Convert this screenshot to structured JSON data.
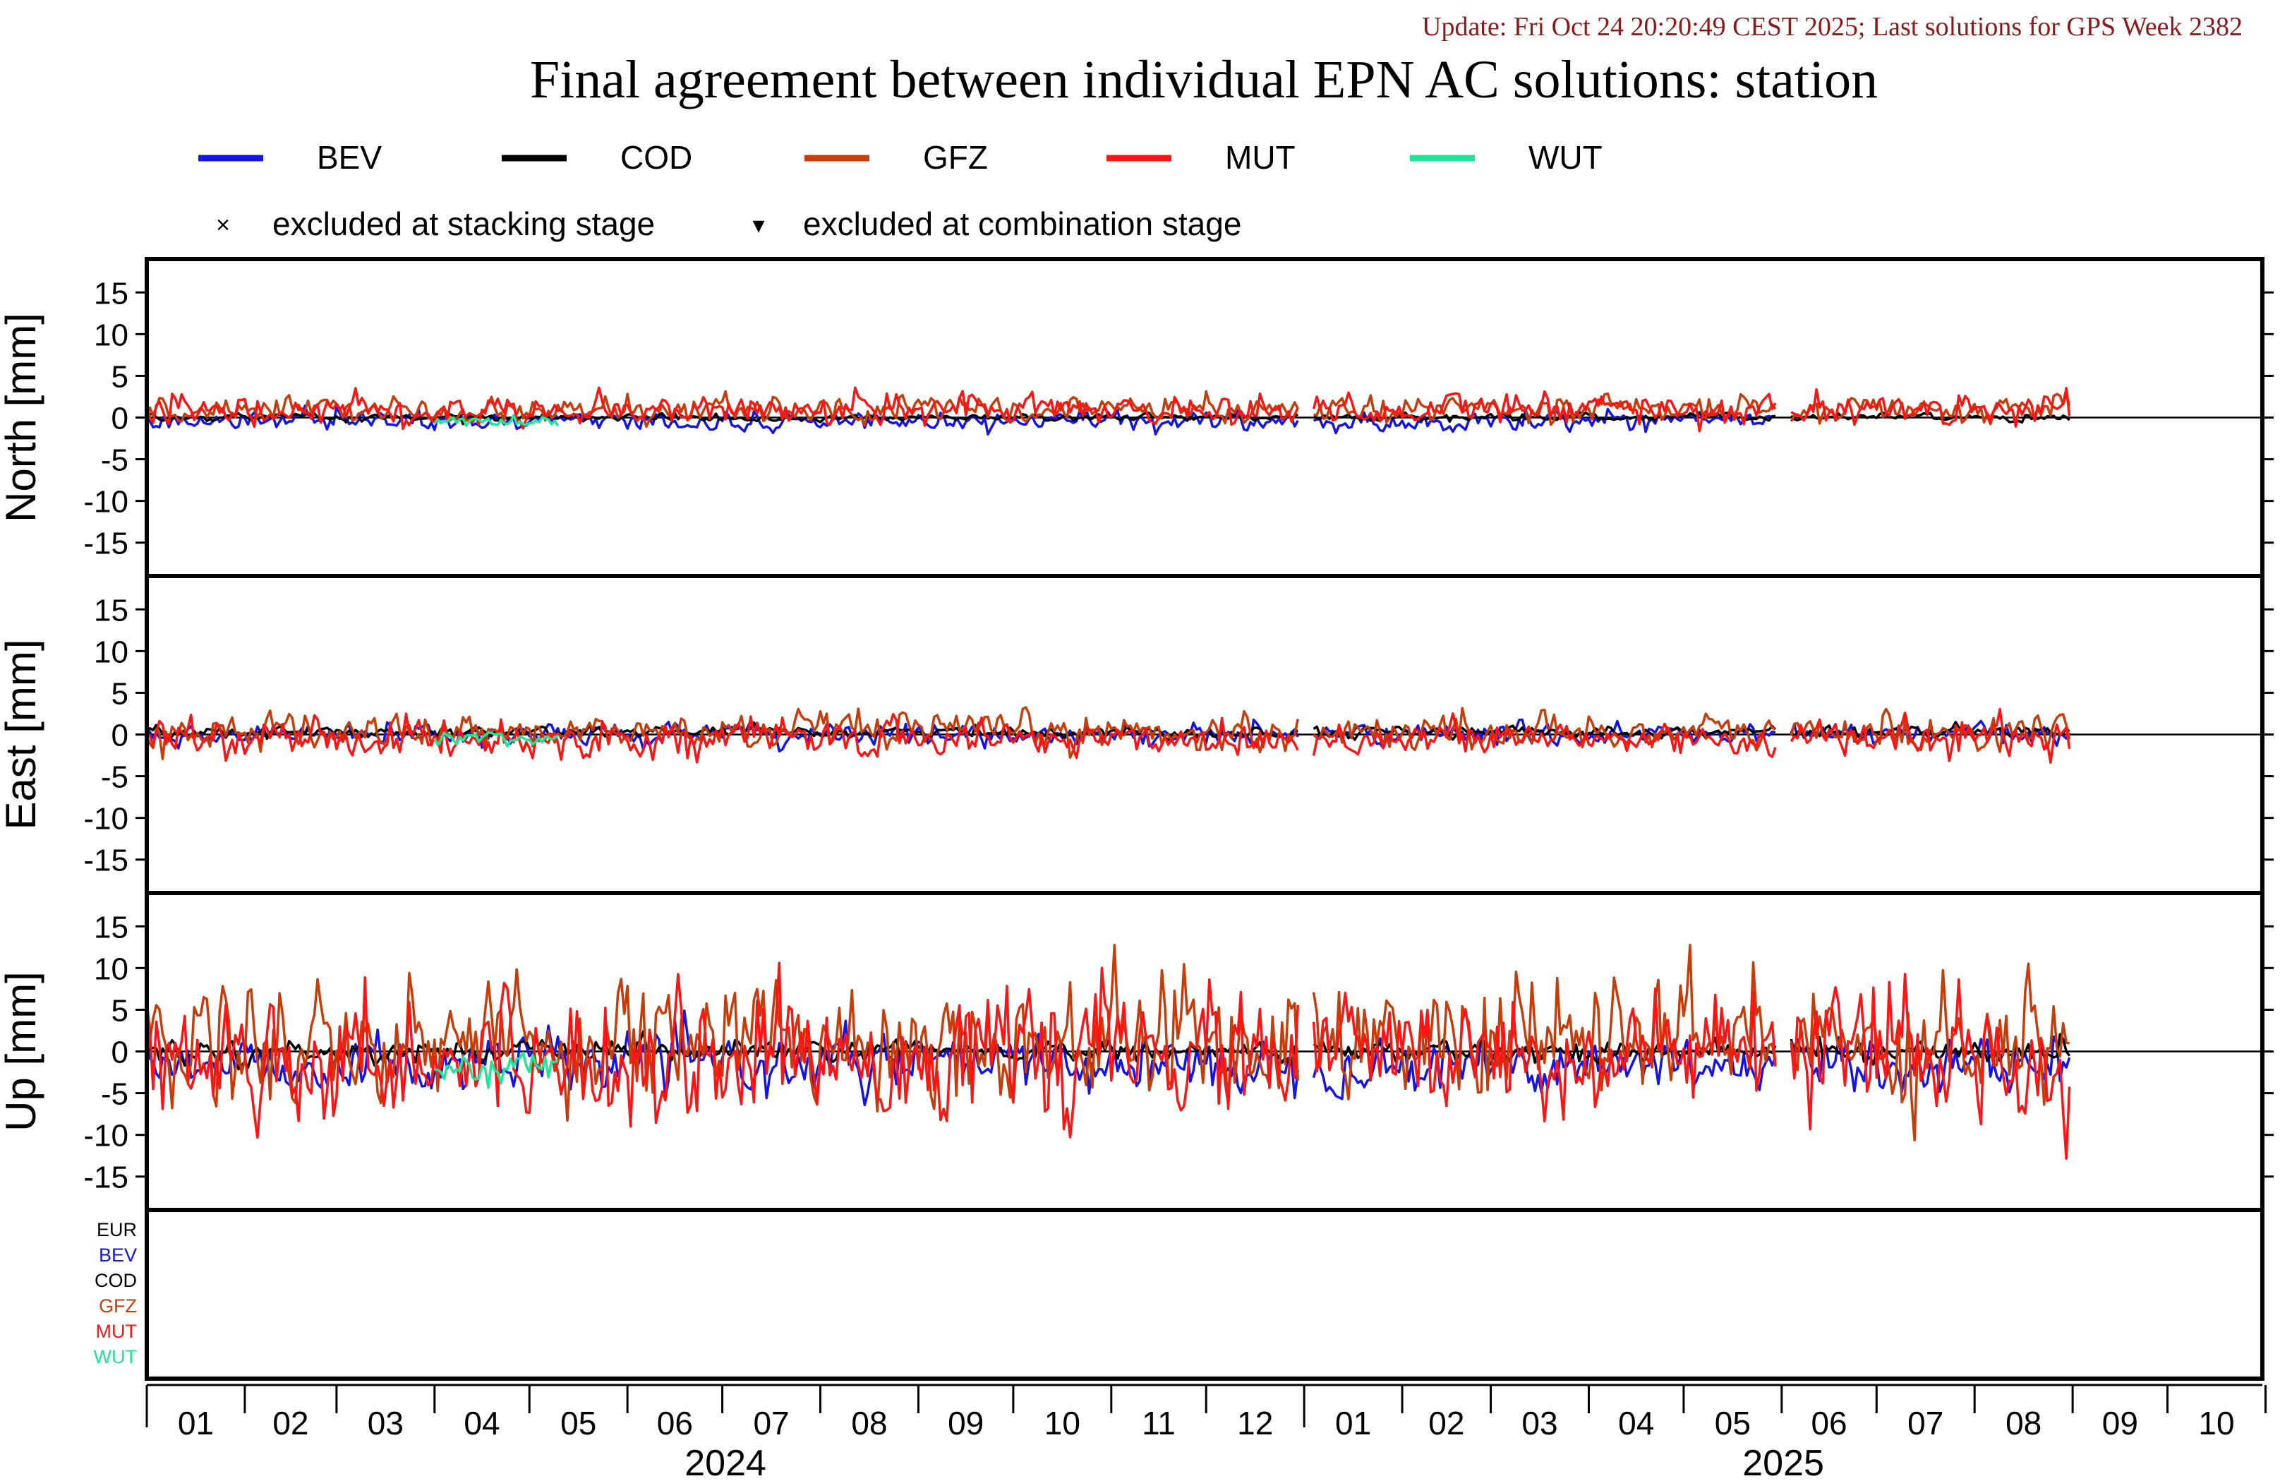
{
  "update_text": "Update: Fri Oct 24 20:20:49 CEST 2025; Last solutions for GPS Week 2382",
  "title": "Final agreement between individual EPN AC solutions: station",
  "legend": {
    "series": [
      {
        "name": "BEV",
        "color": "#1414e6"
      },
      {
        "name": "COD",
        "color": "#000000"
      },
      {
        "name": "GFZ",
        "color": "#c83c0a"
      },
      {
        "name": "MUT",
        "color": "#ff1414"
      },
      {
        "name": "WUT",
        "color": "#1ee696"
      }
    ],
    "markers": [
      {
        "symbol": "×",
        "label": "excluded at stacking stage"
      },
      {
        "symbol": "▾",
        "label": "excluded at combination stage"
      }
    ]
  },
  "chart_data": {
    "type": "line",
    "x_axis": {
      "month_ticks": [
        "01",
        "02",
        "03",
        "04",
        "05",
        "06",
        "07",
        "08",
        "09",
        "10",
        "11",
        "12",
        "01",
        "02",
        "03",
        "04",
        "05",
        "06",
        "07",
        "08",
        "09",
        "10"
      ],
      "years": [
        "2024",
        "2025"
      ],
      "range": [
        "2024-01-01",
        "2025-10-31"
      ]
    },
    "panels": [
      {
        "ylabel": "North [mm]",
        "ylim": [
          -19,
          19
        ],
        "yticks": [
          15,
          10,
          5,
          0,
          -5,
          -10,
          -15
        ],
        "series": [
          {
            "name": "BEV",
            "level": -0.4,
            "noise": 0.5,
            "start": "2024-01-01",
            "end": "2025-05-31"
          },
          {
            "name": "COD",
            "level": 0.0,
            "noise": 0.2,
            "start": "2024-01-01",
            "end": "2025-08-31"
          },
          {
            "name": "GFZ",
            "level": 1.0,
            "noise": 0.7,
            "start": "2024-01-01",
            "end": "2025-08-31"
          },
          {
            "name": "MUT",
            "level": 1.0,
            "noise": 0.9,
            "start": "2024-01-01",
            "end": "2025-08-31"
          },
          {
            "name": "WUT",
            "level": -0.5,
            "noise": 0.4,
            "start": "2024-04-01",
            "end": "2024-05-10"
          }
        ]
      },
      {
        "ylabel": "East [mm]",
        "ylim": [
          -19,
          19
        ],
        "yticks": [
          15,
          10,
          5,
          0,
          -5,
          -10,
          -15
        ],
        "series": [
          {
            "name": "BEV",
            "level": 0.0,
            "noise": 0.6,
            "start": "2024-01-01",
            "end": "2025-08-31"
          },
          {
            "name": "COD",
            "level": 0.3,
            "noise": 0.3,
            "start": "2024-01-01",
            "end": "2025-08-31"
          },
          {
            "name": "GFZ",
            "level": 0.3,
            "noise": 1.0,
            "start": "2024-01-01",
            "end": "2025-08-31"
          },
          {
            "name": "MUT",
            "level": -0.5,
            "noise": 1.0,
            "start": "2024-01-01",
            "end": "2025-08-31"
          },
          {
            "name": "WUT",
            "level": -0.4,
            "noise": 0.4,
            "start": "2024-04-01",
            "end": "2024-05-10"
          }
        ]
      },
      {
        "ylabel": "Up [mm]",
        "ylim": [
          -19,
          19
        ],
        "yticks": [
          15,
          10,
          5,
          0,
          -5,
          -10,
          -15
        ],
        "series": [
          {
            "name": "BEV",
            "level": -1.5,
            "noise": 1.5,
            "start": "2024-01-01",
            "end": "2025-08-31"
          },
          {
            "name": "COD",
            "level": 0.0,
            "noise": 0.6,
            "start": "2024-01-01",
            "end": "2025-08-31"
          },
          {
            "name": "GFZ",
            "level": 1.5,
            "noise": 3.5,
            "start": "2024-01-01",
            "end": "2025-08-31"
          },
          {
            "name": "MUT",
            "level": -0.5,
            "noise": 3.5,
            "start": "2024-01-01",
            "end": "2025-08-31"
          },
          {
            "name": "WUT",
            "level": -2.0,
            "noise": 0.8,
            "start": "2024-04-01",
            "end": "2024-05-10"
          }
        ]
      }
    ],
    "exclusion_panel": {
      "labels": [
        {
          "name": "EUR",
          "color": "#000000"
        },
        {
          "name": "BEV",
          "color": "#1414e6"
        },
        {
          "name": "COD",
          "color": "#000000"
        },
        {
          "name": "GFZ",
          "color": "#c83c0a"
        },
        {
          "name": "MUT",
          "color": "#ff1414"
        },
        {
          "name": "WUT",
          "color": "#1ee696"
        }
      ]
    }
  }
}
